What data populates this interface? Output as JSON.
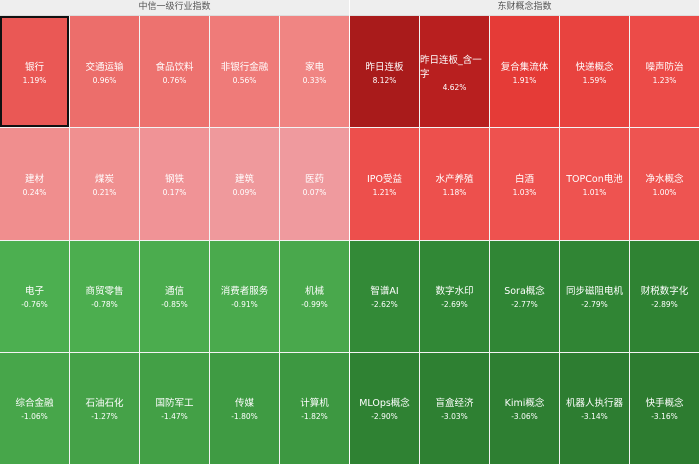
{
  "panels": [
    {
      "title": "中信一级行业指数",
      "tiles": [
        {
          "name": "银行",
          "change": "1.19%",
          "color": "#ea5855"
        },
        {
          "name": "交通运输",
          "change": "0.96%",
          "color": "#ec6e6b"
        },
        {
          "name": "食品饮料",
          "change": "0.76%",
          "color": "#ed726f"
        },
        {
          "name": "非银行金融",
          "change": "0.56%",
          "color": "#ef7b79"
        },
        {
          "name": "家电",
          "change": "0.33%",
          "color": "#f08583"
        },
        {
          "name": "建材",
          "change": "0.24%",
          "color": "#f08e8e"
        },
        {
          "name": "煤炭",
          "change": "0.21%",
          "color": "#f09090"
        },
        {
          "name": "钢铁",
          "change": "0.17%",
          "color": "#f09396"
        },
        {
          "name": "建筑",
          "change": "0.09%",
          "color": "#ef999c"
        },
        {
          "name": "医药",
          "change": "0.07%",
          "color": "#ef9a9e"
        },
        {
          "name": "电子",
          "change": "-0.76%",
          "color": "#4caf50"
        },
        {
          "name": "商贸零售",
          "change": "-0.78%",
          "color": "#4cae4f"
        },
        {
          "name": "通信",
          "change": "-0.85%",
          "color": "#4bac4e"
        },
        {
          "name": "消费者服务",
          "change": "-0.91%",
          "color": "#4aaa4d"
        },
        {
          "name": "机械",
          "change": "-0.99%",
          "color": "#49a84c"
        },
        {
          "name": "综合金融",
          "change": "-1.06%",
          "color": "#47a64a"
        },
        {
          "name": "石油石化",
          "change": "-1.27%",
          "color": "#45a248"
        },
        {
          "name": "国防军工",
          "change": "-1.47%",
          "color": "#43a046"
        },
        {
          "name": "传媒",
          "change": "-1.80%",
          "color": "#3f9b43"
        },
        {
          "name": "计算机",
          "change": "-1.82%",
          "color": "#3d9841"
        }
      ]
    },
    {
      "title": "东财概念指数",
      "tiles": [
        {
          "name": "昨日连板",
          "change": "8.12%",
          "color": "#a91b1b"
        },
        {
          "name": "昨日连板_含一字",
          "change": "4.62%",
          "color": "#b81f1f"
        },
        {
          "name": "复合集流体",
          "change": "1.91%",
          "color": "#e53b37"
        },
        {
          "name": "快递概念",
          "change": "1.59%",
          "color": "#e8433f"
        },
        {
          "name": "噪声防治",
          "change": "1.23%",
          "color": "#ec4b48"
        },
        {
          "name": "IPO受益",
          "change": "1.21%",
          "color": "#ed4f4c"
        },
        {
          "name": "水产养殖",
          "change": "1.18%",
          "color": "#ed504d"
        },
        {
          "name": "白酒",
          "change": "1.03%",
          "color": "#ee524f"
        },
        {
          "name": "TOPCon电池",
          "change": "1.01%",
          "color": "#ee5350"
        },
        {
          "name": "净水概念",
          "change": "1.00%",
          "color": "#ee5451"
        },
        {
          "name": "智谱AI",
          "change": "-2.62%",
          "color": "#338a37"
        },
        {
          "name": "数字水印",
          "change": "-2.69%",
          "color": "#318836"
        },
        {
          "name": "Sora概念",
          "change": "-2.77%",
          "color": "#308635"
        },
        {
          "name": "同步磁阻电机",
          "change": "-2.79%",
          "color": "#308534"
        },
        {
          "name": "财税数字化",
          "change": "-2.89%",
          "color": "#2f8333"
        },
        {
          "name": "MLOps概念",
          "change": "-2.90%",
          "color": "#2f8233"
        },
        {
          "name": "盲盒经济",
          "change": "-3.03%",
          "color": "#2e8032"
        },
        {
          "name": "Kimi概念",
          "change": "-3.06%",
          "color": "#2e7f32"
        },
        {
          "name": "机器人执行器",
          "change": "-3.14%",
          "color": "#2d7d31"
        },
        {
          "name": "快手概念",
          "change": "-3.16%",
          "color": "#2d7c30"
        }
      ]
    }
  ]
}
